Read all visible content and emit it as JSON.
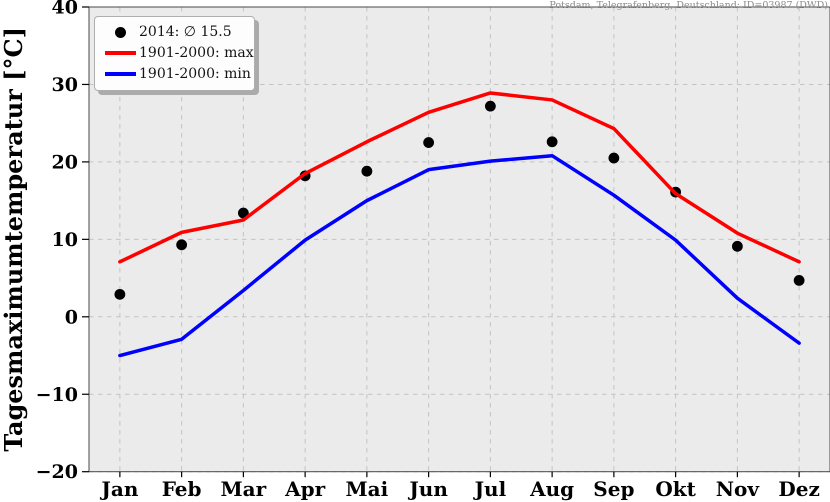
{
  "title": "Potsdam, Telegrafenberg, Deutschland: ID=03987 (DWD)",
  "legend": {
    "items": [
      {
        "label": "2014: ∅ 15.5",
        "marker": "black-dot"
      },
      {
        "label": "1901-2000: max",
        "marker": "red-line"
      },
      {
        "label": "1901-2000: min",
        "marker": "blue-line"
      }
    ]
  },
  "colors": {
    "points_2014": "#000000",
    "max_line": "#ff0000",
    "min_line": "#0000ff",
    "plot_background": "#ebebeb",
    "grid": "#c3c3c3",
    "spine": "#4a4a4a",
    "tick_text": "#000000",
    "title_text": "#8a8a8a"
  },
  "chart_data": {
    "type": "line",
    "title": "Potsdam, Telegrafenberg, Deutschland: ID=03987 (DWD)",
    "xlabel": "",
    "ylabel": "Tagesmaximumtemperatur [°C]",
    "categories": [
      "Jan",
      "Feb",
      "Mar",
      "Apr",
      "Mai",
      "Jun",
      "Jul",
      "Aug",
      "Sep",
      "Okt",
      "Nov",
      "Dez"
    ],
    "ylim": [
      -20,
      40
    ],
    "yticks": [
      40,
      30,
      20,
      10,
      0,
      -10,
      -20
    ],
    "grid": true,
    "grid_style": "dashed",
    "legend_position": "upper left",
    "series": [
      {
        "name": "2014: ∅ 15.5",
        "render": "scatter",
        "color": "#000000",
        "values": [
          2.9,
          9.3,
          13.4,
          18.2,
          18.8,
          22.5,
          27.2,
          22.6,
          20.5,
          16.1,
          9.1,
          4.7
        ]
      },
      {
        "name": "1901-2000: max",
        "render": "line",
        "color": "#ff0000",
        "values": [
          7.1,
          10.9,
          12.5,
          18.5,
          22.6,
          26.4,
          28.9,
          28.0,
          24.3,
          15.9,
          10.8,
          7.1
        ]
      },
      {
        "name": "1901-2000: min",
        "render": "line",
        "color": "#0000ff",
        "values": [
          -5.0,
          -2.9,
          3.4,
          9.9,
          15.0,
          19.0,
          20.1,
          20.8,
          15.7,
          9.9,
          2.4,
          -3.4
        ]
      }
    ],
    "annotations": {
      "mean_2014": 15.5
    }
  }
}
